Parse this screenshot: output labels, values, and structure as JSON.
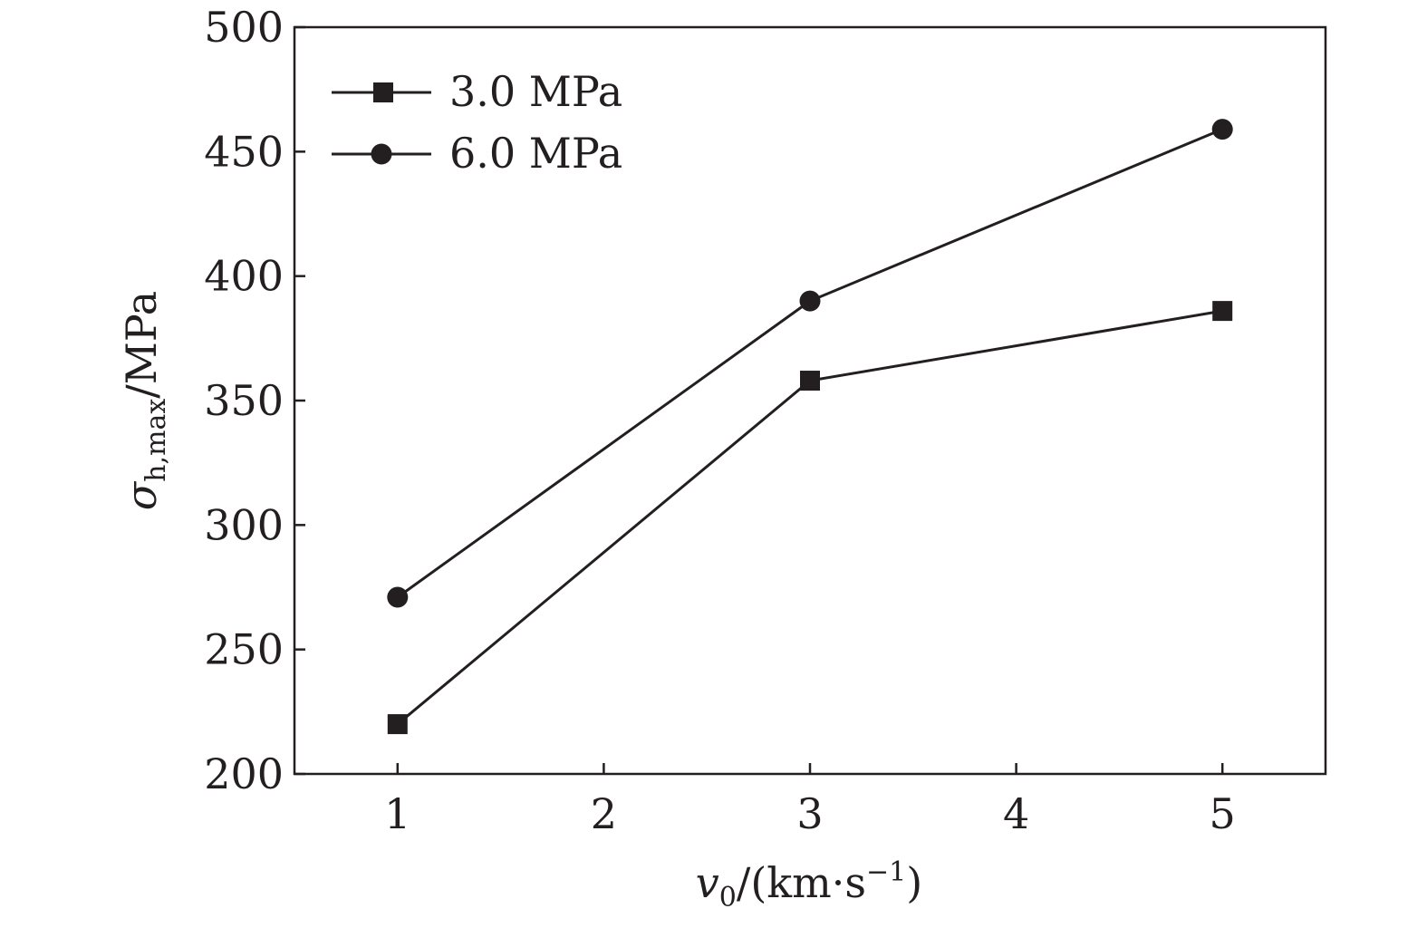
{
  "chart_data": {
    "type": "line",
    "x": [
      1,
      3,
      5
    ],
    "xlim": [
      0.5,
      5.5
    ],
    "ylim": [
      200,
      500
    ],
    "x_ticks": [
      1,
      2,
      3,
      4,
      5
    ],
    "y_ticks": [
      200,
      250,
      300,
      350,
      400,
      450,
      500
    ],
    "x_tick_labels": [
      "1",
      "2",
      "3",
      "4",
      "5"
    ],
    "y_tick_labels": [
      "200",
      "250",
      "300",
      "350",
      "400",
      "450",
      "500"
    ],
    "xlabel": {
      "symbol": "v",
      "subscript": "0",
      "unit_prefix": "/(km·s",
      "superscript": "−1",
      "unit_suffix": ")"
    },
    "ylabel": {
      "symbol": "σ",
      "subscript": "h,max",
      "unit": "/MPa"
    },
    "legend_position": "top-left",
    "grid": false,
    "series": [
      {
        "name": "3.0 MPa",
        "marker": "square",
        "values": [
          220,
          358,
          386
        ]
      },
      {
        "name": "6.0 MPa",
        "marker": "circle",
        "values": [
          271,
          390,
          459
        ]
      }
    ]
  }
}
